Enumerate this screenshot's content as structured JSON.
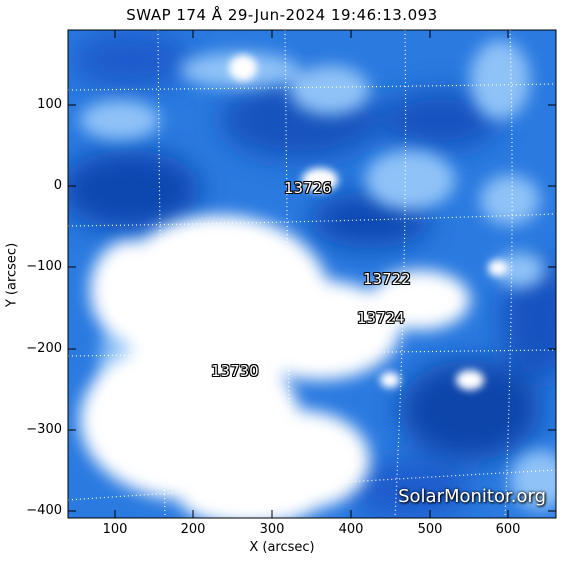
{
  "title": "SWAP 174 Å 29-Jun-2024 19:46:13.093",
  "x_axis": {
    "title": "X (arcsec)",
    "ticks": [
      "100",
      "200",
      "300",
      "400",
      "500",
      "600"
    ]
  },
  "y_axis": {
    "title": "Y (arcsec)",
    "ticks": [
      "100",
      "0",
      "−100",
      "−200",
      "−300",
      "−400"
    ]
  },
  "regions": [
    "13726",
    "13722",
    "13724",
    "13730"
  ],
  "watermark": "SolarMonitor.org",
  "colors": {
    "background_blue": "#1f6fd8",
    "dark_blue": "#0d3f9e",
    "bright": "#ffffff"
  }
}
